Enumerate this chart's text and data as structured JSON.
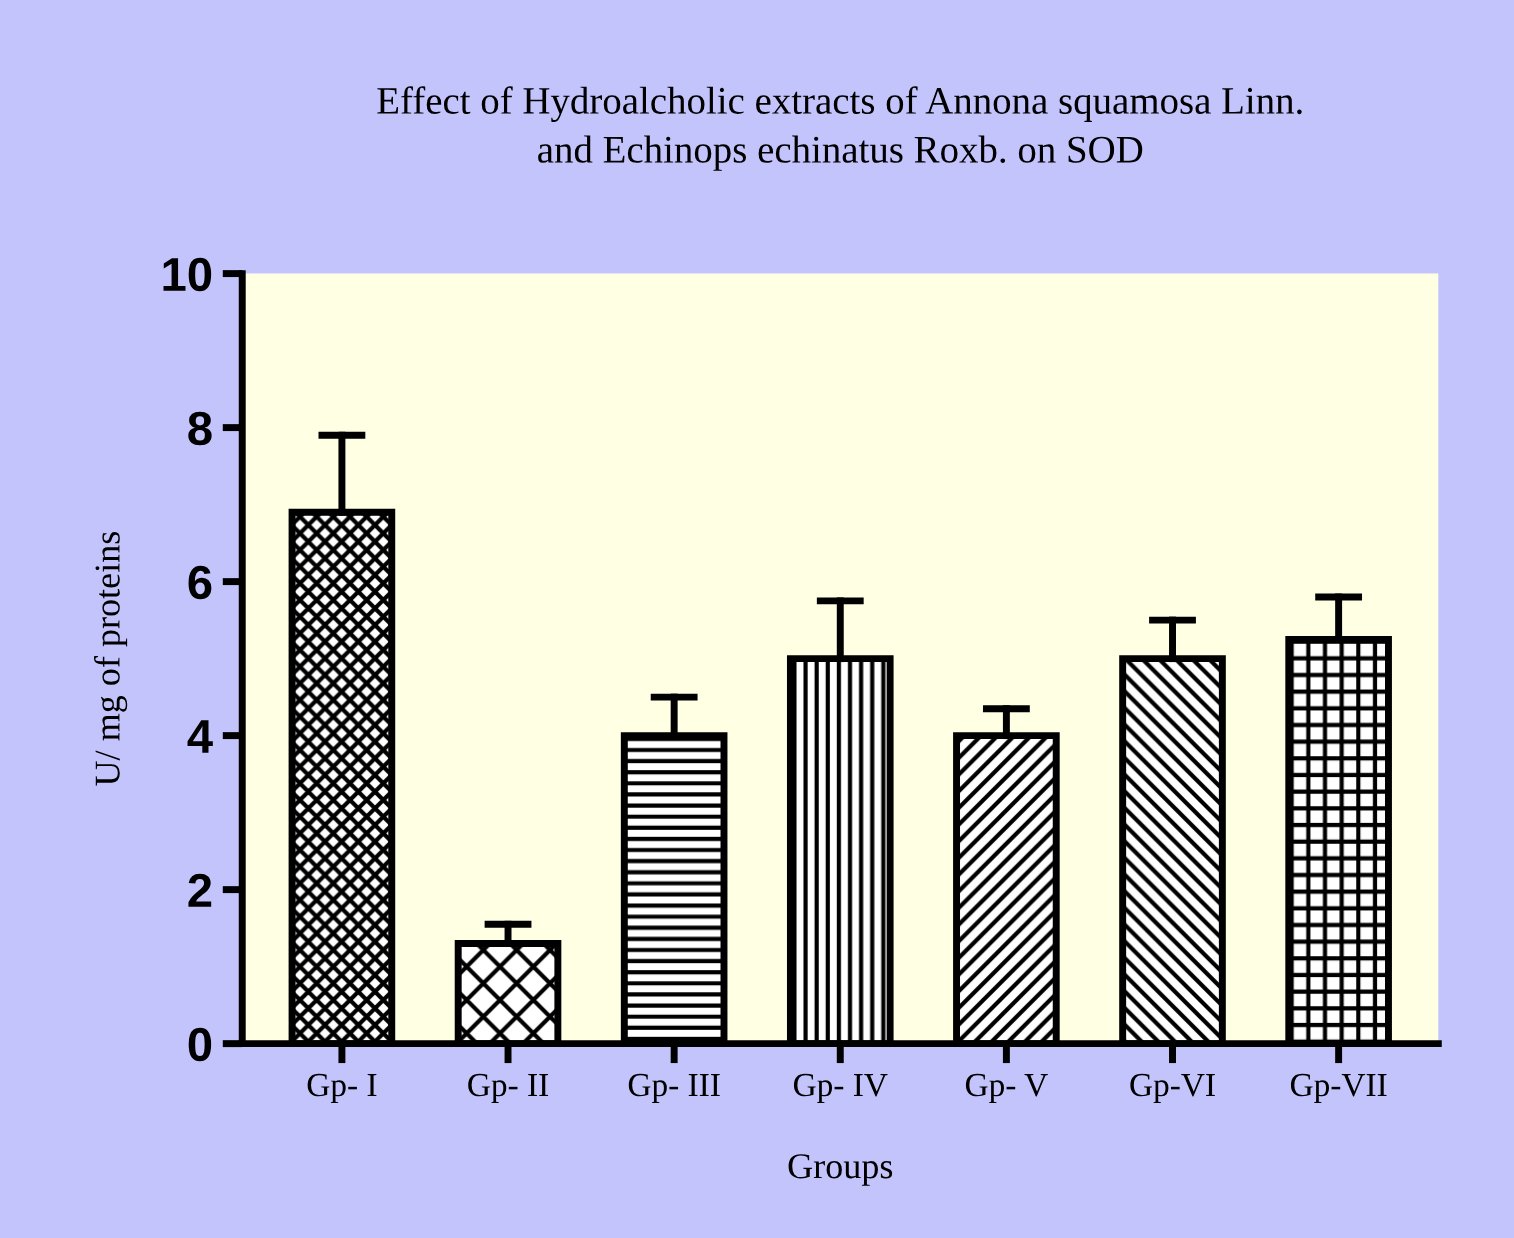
{
  "chart_data": {
    "type": "bar",
    "title": "Effect of Hydroalcholic extracts of Annona squamosa Linn.\nand Echinops echinatus Roxb. on SOD",
    "xlabel": "Groups",
    "ylabel": "U/ mg of proteins",
    "categories": [
      "Gp- I",
      "Gp- II",
      "Gp- III",
      "Gp- IV",
      "Gp- V",
      "Gp-VI",
      "Gp-VII"
    ],
    "values": [
      6.9,
      1.3,
      4.0,
      5.0,
      4.0,
      5.0,
      5.25
    ],
    "errors": [
      [
        6.9,
        7.9
      ],
      [
        1.3,
        1.55
      ],
      [
        4.0,
        4.5
      ],
      [
        5.0,
        5.75
      ],
      [
        4.0,
        4.35
      ],
      [
        5.0,
        5.5
      ],
      [
        5.25,
        5.8
      ]
    ],
    "color": "#000000",
    "ylim": [
      0,
      10
    ],
    "yticks": [
      0,
      2,
      4,
      6,
      8,
      10
    ],
    "grid": false,
    "legend": false
  }
}
